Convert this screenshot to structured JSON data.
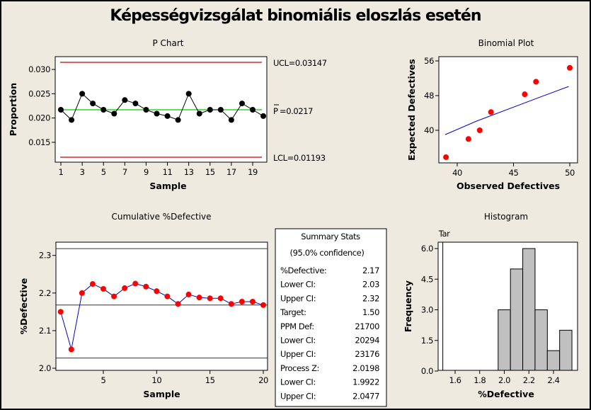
{
  "title": "Képességvizsgálat binomiális eloszlás esetén",
  "colors": {
    "background": "#eeeae0",
    "control_limit": "#cc0000",
    "center_line": "#00cc00",
    "cumulative_line": "#0000cc",
    "marker_red": "#ff0000",
    "bar_fill": "#c0c0c0"
  },
  "chart_data": [
    {
      "id": "p-chart",
      "type": "line",
      "title": "P Chart",
      "xlabel": "Sample",
      "ylabel": "Proportion",
      "x": [
        1,
        2,
        3,
        4,
        5,
        6,
        7,
        8,
        9,
        10,
        11,
        12,
        13,
        14,
        15,
        16,
        17,
        18,
        19,
        20
      ],
      "values": [
        0.0217,
        0.0196,
        0.025,
        0.023,
        0.0217,
        0.0209,
        0.0237,
        0.023,
        0.0217,
        0.0209,
        0.0204,
        0.0196,
        0.025,
        0.0209,
        0.0217,
        0.0217,
        0.0196,
        0.023,
        0.0217,
        0.0204
      ],
      "xlim": [
        0.5,
        20.35
      ],
      "ylim": [
        0.0109,
        0.0326
      ],
      "xticks": [
        "1",
        "3",
        "5",
        "7",
        "9",
        "11",
        "13",
        "15",
        "17",
        "19"
      ],
      "xtick_values": [
        1,
        3,
        5,
        7,
        9,
        11,
        13,
        15,
        17,
        19
      ],
      "yticks": [
        "0.015",
        "0.020",
        "0.025",
        "0.030"
      ],
      "ytick_values": [
        0.015,
        0.02,
        0.025,
        0.03
      ],
      "ucl": 0.03147,
      "center": 0.0217,
      "lcl": 0.01193,
      "ucl_label": "UCL=0.03147",
      "center_label_symbol": "P",
      "center_label_value": "=0.0217",
      "lcl_label": "LCL=0.01193"
    },
    {
      "id": "binomial-plot",
      "type": "scatter",
      "title": "Binomial Plot",
      "xlabel": "Observed Defectives",
      "ylabel": "Expected Defectives",
      "points": [
        {
          "x": 39,
          "y": 33.8
        },
        {
          "x": 41,
          "y": 38.0
        },
        {
          "x": 42,
          "y": 40.0
        },
        {
          "x": 43,
          "y": 44.2
        },
        {
          "x": 46,
          "y": 48.3
        },
        {
          "x": 47,
          "y": 51.2
        },
        {
          "x": 50,
          "y": 54.4
        }
      ],
      "fit_line": [
        {
          "x": 38.93,
          "y": 39.0
        },
        {
          "x": 41.7,
          "y": 42.1
        },
        {
          "x": 47.2,
          "y": 47.5
        },
        {
          "x": 49.9,
          "y": 50.1
        }
      ],
      "xlim": [
        38.5,
        50.7
      ],
      "ylim": [
        32.5,
        56.9
      ],
      "xticks": [
        "40",
        "45",
        "50"
      ],
      "xtick_values": [
        40,
        45,
        50
      ],
      "yticks": [
        "40",
        "48",
        "56"
      ],
      "ytick_values": [
        40,
        48,
        56
      ]
    },
    {
      "id": "cumulative-defective",
      "type": "line",
      "title": "Cumulative %Defective",
      "xlabel": "Sample",
      "ylabel": "%Defective",
      "x": [
        1,
        2,
        3,
        4,
        5,
        6,
        7,
        8,
        9,
        10,
        11,
        12,
        13,
        14,
        15,
        16,
        17,
        18,
        19,
        20
      ],
      "values": [
        2.15,
        2.05,
        2.2,
        2.224,
        2.211,
        2.191,
        2.213,
        2.225,
        2.217,
        2.205,
        2.191,
        2.171,
        2.196,
        2.188,
        2.186,
        2.186,
        2.171,
        2.177,
        2.177,
        2.168
      ],
      "xlim": [
        0.5,
        20.4
      ],
      "ylim": [
        1.994,
        2.334
      ],
      "xticks": [
        "5",
        "10",
        "15",
        "20"
      ],
      "xtick_values": [
        5,
        10,
        15,
        20
      ],
      "yticks": [
        "2.0",
        "2.1",
        "2.2",
        "2.3"
      ],
      "ytick_values": [
        2.0,
        2.1,
        2.2,
        2.3
      ],
      "reference_lines": [
        2.318,
        2.168,
        2.027
      ]
    },
    {
      "id": "histogram",
      "type": "bar",
      "title": "Histogram",
      "xlabel": "%Defective",
      "ylabel": "Frequency",
      "bins": [
        {
          "from": 1.95,
          "to": 2.05,
          "count": 3
        },
        {
          "from": 2.05,
          "to": 2.15,
          "count": 5
        },
        {
          "from": 2.15,
          "to": 2.25,
          "count": 6
        },
        {
          "from": 2.25,
          "to": 2.35,
          "count": 3
        },
        {
          "from": 2.35,
          "to": 2.45,
          "count": 1
        },
        {
          "from": 2.45,
          "to": 2.55,
          "count": 2
        }
      ],
      "xlim": [
        1.462,
        2.596
      ],
      "ylim": [
        0,
        6.31
      ],
      "xticks": [
        "1.6",
        "1.8",
        "2.0",
        "2.2",
        "2.4"
      ],
      "xtick_values": [
        1.6,
        1.8,
        2.0,
        2.2,
        2.4
      ],
      "yticks": [
        "0.0",
        "1.5",
        "3.0",
        "4.5",
        "6.0"
      ],
      "ytick_values": [
        0,
        1.5,
        3.0,
        4.5,
        6.0
      ],
      "target": 1.5,
      "target_label": "Tar"
    }
  ],
  "summary": {
    "title": "Summary Stats",
    "subtitle": "(95.0% confidence)",
    "rows": [
      {
        "label": "%Defective:",
        "value": "2.17"
      },
      {
        "label": "Lower CI:",
        "value": "2.03"
      },
      {
        "label": "Upper CI:",
        "value": "2.32"
      },
      {
        "label": "Target:",
        "value": "1.50"
      },
      {
        "label": "PPM Def:",
        "value": "21700"
      },
      {
        "label": "Lower CI:",
        "value": "20294"
      },
      {
        "label": "Upper CI:",
        "value": "23176"
      },
      {
        "label": "Process Z:",
        "value": "2.0198"
      },
      {
        "label": "Lower CI:",
        "value": "1.9922"
      },
      {
        "label": "Upper CI:",
        "value": "2.0477"
      }
    ]
  }
}
